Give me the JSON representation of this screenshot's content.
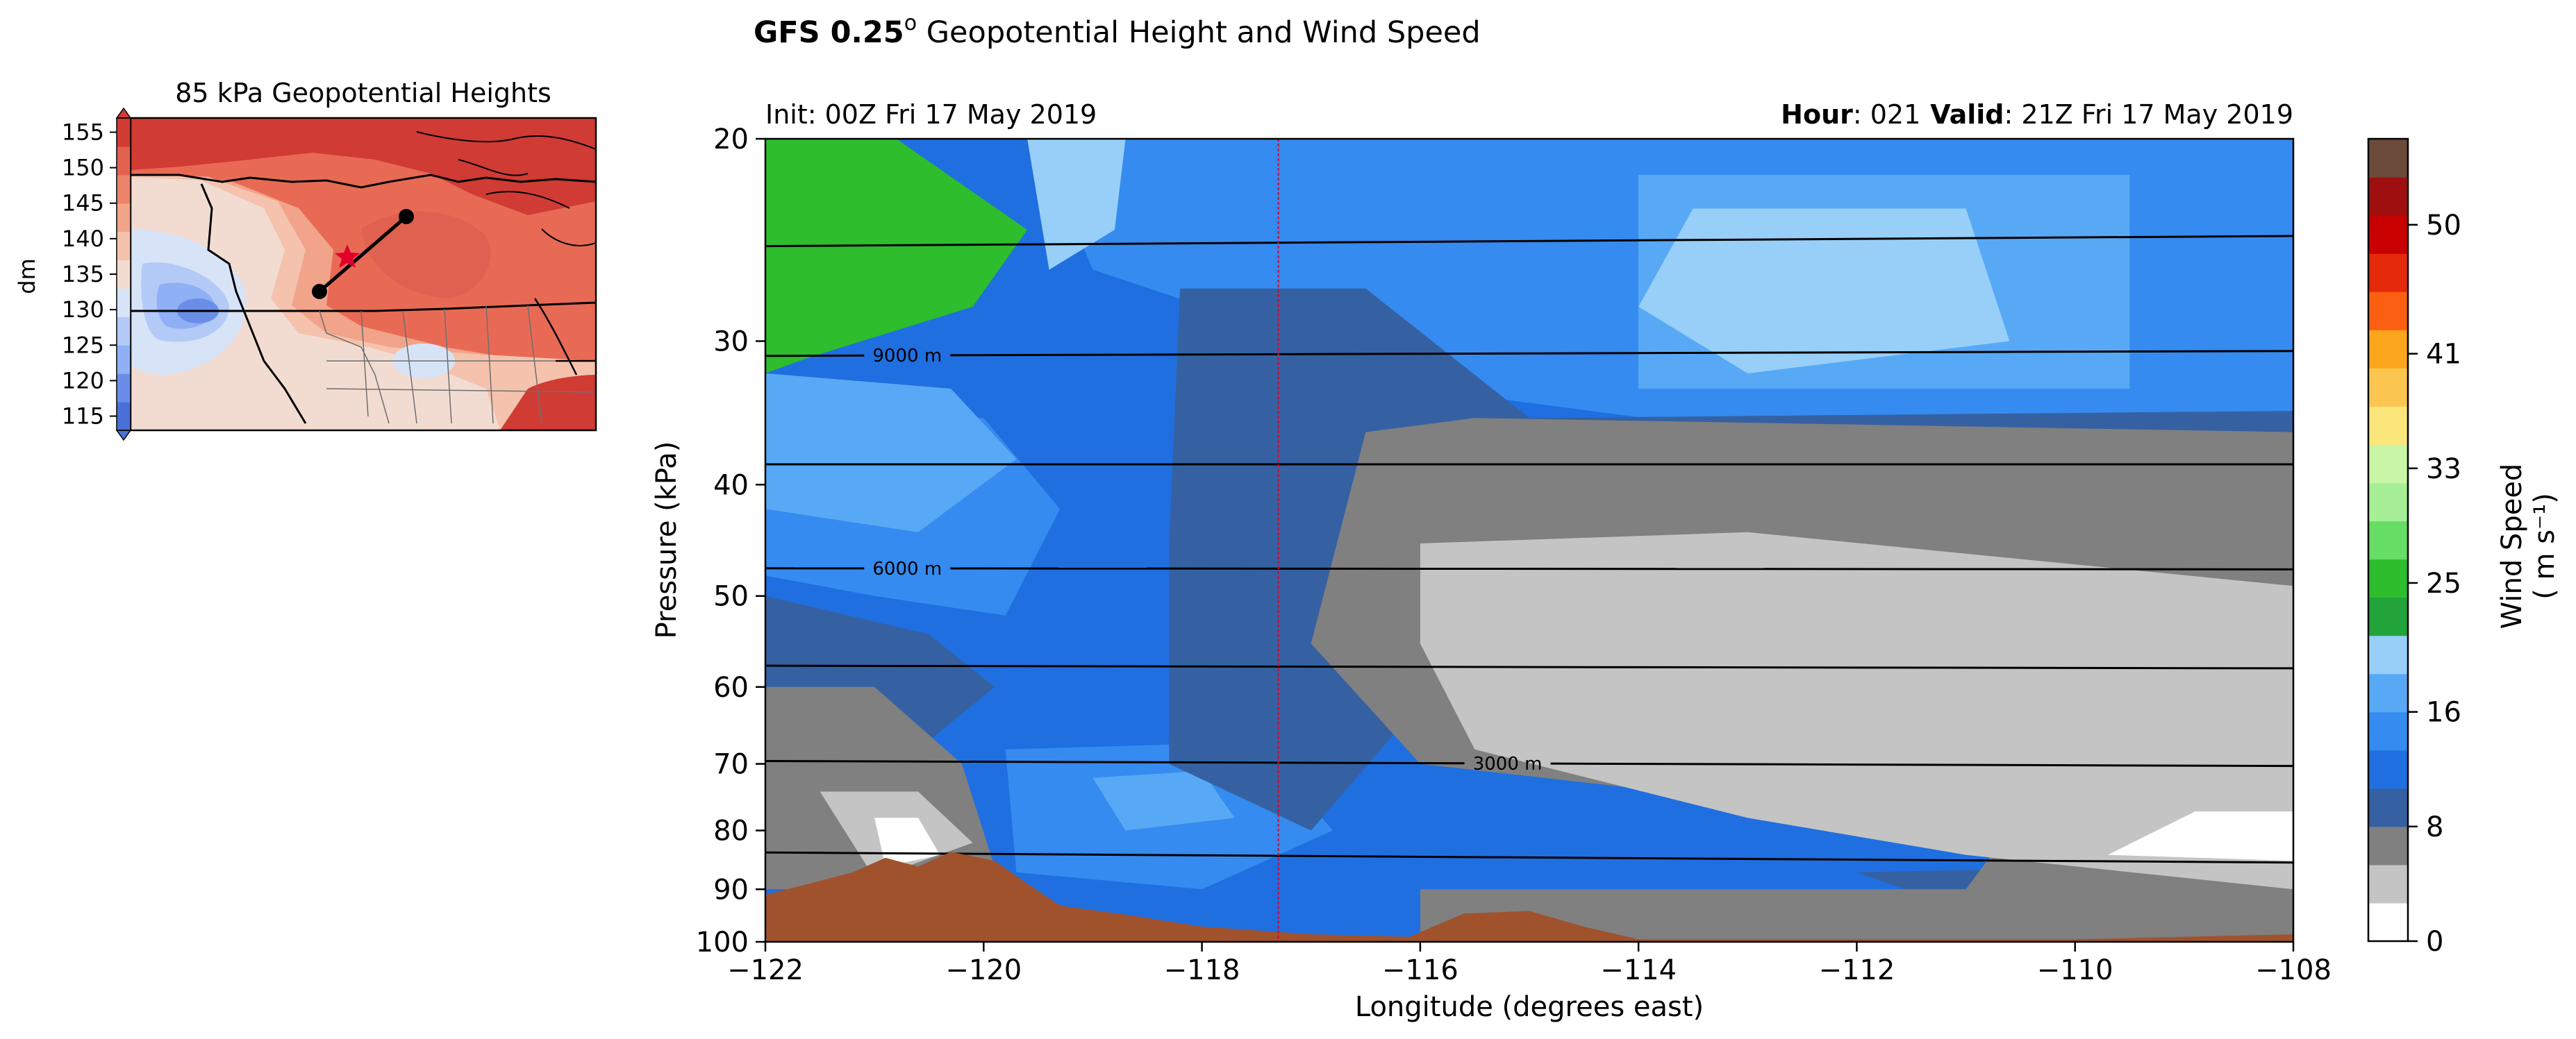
{
  "figure": {
    "title_bold": "GFS 0.25",
    "title_sup": "o",
    "title_rest": " Geopotential Height and Wind Speed",
    "init_text": "Init: 00Z Fri 17 May 2019",
    "hour_label": "Hour",
    "hour_value": ": 021",
    "valid_label": "Valid",
    "valid_value": ": 21Z Fri 17 May 2019"
  },
  "colors": {
    "terrain": "#a0522d",
    "contour_line": "#000000",
    "vertical_line": "#e0002a",
    "wind_levels": [
      "#ffffff",
      "#c4c4c4",
      "#808080",
      "#3561a2",
      "#1f6fe0",
      "#358bef",
      "#58a9f5",
      "#97cff9",
      "#22a43a",
      "#2dbd2d",
      "#66de63",
      "#a6ef97",
      "#c9f6a6",
      "#fbe67c",
      "#fbc64f",
      "#fba61c",
      "#fb6012",
      "#e52a0b",
      "#c80000",
      "#a00f0f",
      "#6c4a3a"
    ],
    "height_levels": [
      "#4a6fd6",
      "#6a8ee8",
      "#8fb0f4",
      "#b3caf7",
      "#d7e3f7",
      "#f2dcd2",
      "#f5c2ad",
      "#f1a48a",
      "#eb8369",
      "#e0614f",
      "#d03b34"
    ]
  },
  "chart_data": [
    {
      "type": "heatmap",
      "name": "cross-section",
      "xlabel": "Longitude (degrees east)",
      "ylabel": "Pressure (kPa)",
      "xlim": [
        -122,
        -108
      ],
      "ylim": [
        100,
        20
      ],
      "y_scale": "log",
      "x_ticks": [
        -122,
        -120,
        -118,
        -116,
        -114,
        -112,
        -110,
        -108
      ],
      "x_tick_labels": [
        "−122",
        "−120",
        "−118",
        "−116",
        "−114",
        "−112",
        "−110",
        "−108"
      ],
      "y_ticks": [
        20,
        30,
        40,
        50,
        60,
        70,
        80,
        90,
        100
      ],
      "y_tick_labels": [
        "20",
        "30",
        "40",
        "50",
        "60",
        "70",
        "80",
        "90",
        "100"
      ],
      "marker_longitude": -117.3,
      "grid": false,
      "contour_lines": [
        {
          "left": 24.8,
          "right": 24.3,
          "label": ""
        },
        {
          "left": 30.9,
          "right": 30.6,
          "label": "9000 m",
          "label_lon": -120.7
        },
        {
          "left": 38.4,
          "right": 38.4,
          "label": ""
        },
        {
          "left": 47.3,
          "right": 47.4,
          "label": "6000 m",
          "label_lon": -120.7
        },
        {
          "left": 57.5,
          "right": 57.8,
          "label": ""
        },
        {
          "left": 69.6,
          "right": 70.3,
          "label": "3000 m",
          "label_lon": -115.2
        },
        {
          "left": 83.6,
          "right": 85.3,
          "label": ""
        }
      ],
      "terrain": [
        {
          "lon": -122.0,
          "p": 91
        },
        {
          "lon": -121.6,
          "p": 89
        },
        {
          "lon": -121.2,
          "p": 87
        },
        {
          "lon": -120.9,
          "p": 84.5
        },
        {
          "lon": -120.6,
          "p": 86
        },
        {
          "lon": -120.3,
          "p": 83.5
        },
        {
          "lon": -119.9,
          "p": 85
        },
        {
          "lon": -119.6,
          "p": 89
        },
        {
          "lon": -119.3,
          "p": 93
        },
        {
          "lon": -118.6,
          "p": 95
        },
        {
          "lon": -118.0,
          "p": 97
        },
        {
          "lon": -117.0,
          "p": 98.5
        },
        {
          "lon": -116.1,
          "p": 99
        },
        {
          "lon": -115.6,
          "p": 94.5
        },
        {
          "lon": -115.0,
          "p": 94
        },
        {
          "lon": -114.5,
          "p": 97
        },
        {
          "lon": -114.0,
          "p": 99.5
        },
        {
          "lon": -110.0,
          "p": 99.5
        },
        {
          "lon": -108.0,
          "p": 98.5
        }
      ],
      "wind_regions": [
        {
          "level": 4,
          "points": [
            [
              -122,
              20
            ],
            [
              -108,
              20
            ],
            [
              -108,
              100
            ],
            [
              -122,
              100
            ]
          ]
        },
        {
          "level": 5,
          "points": [
            [
              -119.5,
              20
            ],
            [
              -108,
              20
            ],
            [
              -108,
              35
            ],
            [
              -112,
              37
            ],
            [
              -116,
              33
            ],
            [
              -117.5,
              29
            ],
            [
              -119,
              26
            ]
          ]
        },
        {
          "level": 5,
          "points": [
            [
              -122,
              35
            ],
            [
              -120,
              35
            ],
            [
              -119.3,
              42
            ],
            [
              -119.8,
              52
            ],
            [
              -121,
              50
            ],
            [
              -122,
              48
            ]
          ]
        },
        {
          "level": 5,
          "points": [
            [
              -119.8,
              68
            ],
            [
              -117.5,
              67
            ],
            [
              -116.8,
              80
            ],
            [
              -118,
              90
            ],
            [
              -119.7,
              87
            ]
          ]
        },
        {
          "level": 6,
          "points": [
            [
              -122,
              32
            ],
            [
              -120.3,
              33
            ],
            [
              -119.7,
              38
            ],
            [
              -120.6,
              44
            ],
            [
              -122,
              42
            ]
          ]
        },
        {
          "level": 6,
          "points": [
            [
              -114,
              21.5
            ],
            [
              -109.5,
              21.5
            ],
            [
              -109.5,
              33
            ],
            [
              -114,
              33
            ]
          ]
        },
        {
          "level": 6,
          "points": [
            [
              -119,
              72
            ],
            [
              -118,
              71
            ],
            [
              -117.7,
              78
            ],
            [
              -118.7,
              80
            ]
          ]
        },
        {
          "level": 7,
          "points": [
            [
              -119.6,
              20
            ],
            [
              -118.7,
              20
            ],
            [
              -118.8,
              24
            ],
            [
              -119.4,
              26
            ]
          ]
        },
        {
          "level": 7,
          "points": [
            [
              -113.5,
              23
            ],
            [
              -111,
              23
            ],
            [
              -110.6,
              30
            ],
            [
              -113,
              32
            ],
            [
              -114,
              28
            ]
          ]
        },
        {
          "level": 3,
          "points": [
            [
              -118.2,
              27
            ],
            [
              -116.5,
              27
            ],
            [
              -115,
              35
            ],
            [
              -108,
              34.5
            ],
            [
              -108,
              55
            ],
            [
              -112,
              56
            ],
            [
              -116,
              62
            ],
            [
              -117,
              80
            ],
            [
              -118.3,
              70
            ],
            [
              -118.3,
              45
            ]
          ]
        },
        {
          "level": 3,
          "points": [
            [
              -122,
              50
            ],
            [
              -120.5,
              54
            ],
            [
              -119.9,
              60
            ],
            [
              -120.6,
              68
            ],
            [
              -122,
              66
            ]
          ]
        },
        {
          "level": 3,
          "points": [
            [
              -112,
              87
            ],
            [
              -109.5,
              86
            ],
            [
              -109,
              93
            ],
            [
              -111,
              94
            ]
          ]
        },
        {
          "level": 2,
          "points": [
            [
              -116.5,
              36
            ],
            [
              -115.5,
              35
            ],
            [
              -108,
              36
            ],
            [
              -108,
              100
            ],
            [
              -116,
              100
            ],
            [
              -116,
              90
            ],
            [
              -111,
              90
            ],
            [
              -110.6,
              80
            ],
            [
              -116,
              70
            ],
            [
              -117,
              55
            ]
          ]
        },
        {
          "level": 2,
          "points": [
            [
              -122,
              60
            ],
            [
              -121,
              60
            ],
            [
              -120.2,
              70
            ],
            [
              -119.9,
              86
            ],
            [
              -120.8,
              90
            ],
            [
              -122,
              90
            ]
          ]
        },
        {
          "level": 1,
          "points": [
            [
              -116,
              45
            ],
            [
              -113,
              44
            ],
            [
              -108,
              49
            ],
            [
              -108,
              90
            ],
            [
              -111,
              84
            ],
            [
              -113,
              78
            ],
            [
              -115.5,
              68
            ],
            [
              -116,
              55
            ]
          ]
        },
        {
          "level": 1,
          "points": [
            [
              -121.5,
              74
            ],
            [
              -120.6,
              74
            ],
            [
              -120.1,
              82
            ],
            [
              -121,
              88
            ]
          ]
        },
        {
          "level": 0,
          "points": [
            [
              -121,
              78
            ],
            [
              -120.6,
              78
            ],
            [
              -120.4,
              84
            ],
            [
              -120.9,
              86
            ]
          ]
        },
        {
          "level": 0,
          "points": [
            [
              -108.9,
              77
            ],
            [
              -108,
              77
            ],
            [
              -108,
              85
            ],
            [
              -109.7,
              84
            ]
          ]
        },
        {
          "level": 2,
          "points": [
            [
              -110.5,
              92
            ],
            [
              -109.5,
              92
            ],
            [
              -109.5,
              98
            ],
            [
              -110.5,
              98
            ]
          ]
        },
        {
          "level": 14,
          "points": [
            [
              -122,
              24
            ],
            [
              -121.7,
              24
            ],
            [
              -121.7,
              27
            ],
            [
              -122,
              27
            ]
          ]
        },
        {
          "level": 12,
          "points": [
            [
              -122,
              22
            ],
            [
              -121.4,
              22
            ],
            [
              -121.4,
              28
            ],
            [
              -122,
              28
            ]
          ]
        },
        {
          "level": 10,
          "points": [
            [
              -122,
              21
            ],
            [
              -120.5,
              22
            ],
            [
              -120.2,
              26
            ],
            [
              -121.3,
              29
            ],
            [
              -122,
              30
            ]
          ]
        },
        {
          "level": 9,
          "points": [
            [
              -122,
              20
            ],
            [
              -120.8,
              20
            ],
            [
              -119.6,
              24
            ],
            [
              -120.1,
              28
            ],
            [
              -121.6,
              31
            ],
            [
              -122,
              32
            ]
          ]
        }
      ]
    },
    {
      "type": "heatmap",
      "name": "map-inset",
      "title": "85 kPa Geopotential Heights",
      "colorbar_label": "dm",
      "colorbar_ticks": [
        115,
        120,
        125,
        130,
        135,
        140,
        145,
        150,
        155
      ],
      "colorbar_range": [
        113,
        157
      ]
    },
    {
      "type": "heatmap",
      "name": "wind-colorbar",
      "label_line1": "Wind Speed",
      "label_line2": "( m s⁻¹)",
      "range": [
        0,
        56
      ],
      "tick_values": [
        0,
        8,
        16,
        25,
        33,
        41,
        50
      ],
      "tick_labels": [
        "0",
        "8",
        "16",
        "25",
        "33",
        "41",
        "50"
      ]
    }
  ]
}
